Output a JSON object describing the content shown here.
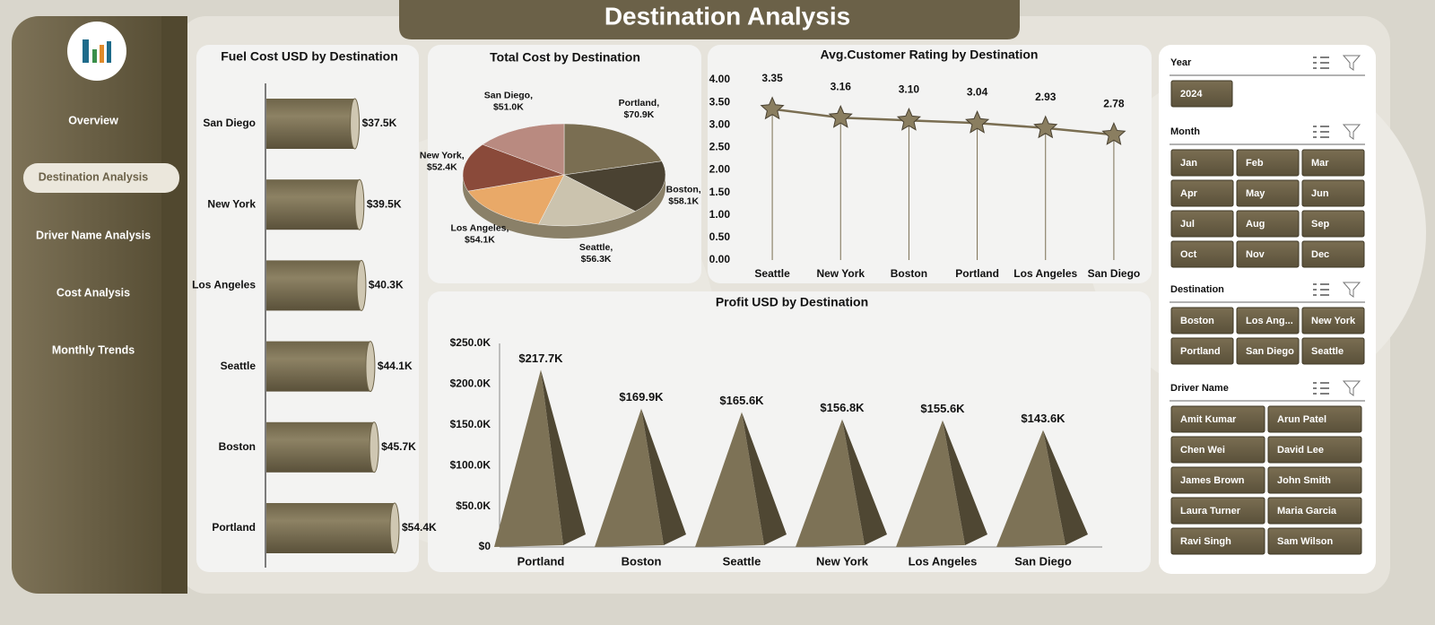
{
  "header": {
    "title": "Destination Analysis"
  },
  "nav": {
    "items": [
      "Overview",
      "Destination Analysis",
      "Driver Name Analysis",
      "Cost Analysis",
      "Monthly Trends"
    ],
    "active": 1
  },
  "chart_data": [
    {
      "type": "hbar",
      "title": "Fuel Cost USD by Destination",
      "color": "#7a6e52",
      "categories": [
        "San Diego",
        "New York",
        "Los Angeles",
        "Seattle",
        "Boston",
        "Portland"
      ],
      "values": [
        37500,
        39500,
        40300,
        44100,
        45700,
        54400
      ],
      "value_labels": [
        "$37.5K",
        "$39.5K",
        "$40.3K",
        "$44.1K",
        "$45.7K",
        "$54.4K"
      ]
    },
    {
      "type": "pie",
      "title": "Total Cost by Destination",
      "categories": [
        "Portland,",
        "Boston,",
        "Seattle,",
        "Los Angeles,",
        "New York,",
        "San Diego,"
      ],
      "values": [
        70900,
        58100,
        56300,
        54100,
        52400,
        51000
      ],
      "value_labels": [
        "$70.9K",
        "$58.1K",
        "$56.3K",
        "$54.1K",
        "$52.4K",
        "$51.0K"
      ],
      "colors": [
        "#7a6e52",
        "#4a4232",
        "#cbc3ae",
        "#e9a968",
        "#8a4a3a",
        "#b98a80"
      ]
    },
    {
      "type": "line",
      "title": "Avg.Customer Rating by Destination",
      "color": "#7a6e52",
      "categories": [
        "Seattle",
        "New York",
        "Boston",
        "Portland",
        "Los Angeles",
        "San Diego"
      ],
      "values": [
        3.35,
        3.16,
        3.1,
        3.04,
        2.93,
        2.78
      ],
      "value_labels": [
        "3.35",
        "3.16",
        "3.10",
        "3.04",
        "2.93",
        "2.78"
      ],
      "ylim": [
        0,
        4
      ],
      "yticks": [
        {
          "value": 0,
          "label": "0.00"
        },
        {
          "value": 0.5,
          "label": "0.50"
        },
        {
          "value": 1,
          "label": "1.00"
        },
        {
          "value": 1.5,
          "label": "1.50"
        },
        {
          "value": 2,
          "label": "2.00"
        },
        {
          "value": 2.5,
          "label": "2.50"
        },
        {
          "value": 3,
          "label": "3.00"
        },
        {
          "value": 3.5,
          "label": "3.50"
        },
        {
          "value": 4,
          "label": "4.00"
        }
      ]
    },
    {
      "type": "pyramid",
      "title": "Profit USD by Destination",
      "color": "#7a6e52",
      "categories": [
        "Portland",
        "Boston",
        "Seattle",
        "New York",
        "Los Angeles",
        "San Diego"
      ],
      "values": [
        217700,
        169900,
        165600,
        156800,
        155600,
        143600
      ],
      "value_labels": [
        "$217.7K",
        "$169.9K",
        "$165.6K",
        "$156.8K",
        "$155.6K",
        "$143.6K"
      ],
      "ylim": [
        0,
        250000
      ],
      "yticks": [
        {
          "value": 0,
          "label": "$0"
        },
        {
          "value": 50000,
          "label": "$50.0K"
        },
        {
          "value": 100000,
          "label": "$100.0K"
        },
        {
          "value": 150000,
          "label": "$150.0K"
        },
        {
          "value": 200000,
          "label": "$200.0K"
        },
        {
          "value": 250000,
          "label": "$250.0K"
        }
      ]
    }
  ],
  "slicers": [
    {
      "title": "Year",
      "items": [
        "2024"
      ]
    },
    {
      "title": "Month",
      "items": [
        "Jan",
        "Feb",
        "Mar",
        "Apr",
        "May",
        "Jun",
        "Jul",
        "Aug",
        "Sep",
        "Oct",
        "Nov",
        "Dec"
      ]
    },
    {
      "title": "Destination",
      "items": [
        "Boston",
        "Los Ang...",
        "New York",
        "Portland",
        "San Diego",
        "Seattle"
      ]
    },
    {
      "title": "Driver Name",
      "items": [
        "Amit Kumar",
        "Arun Patel",
        "Chen Wei",
        "David Lee",
        "James Brown",
        "John Smith",
        "Laura Turner",
        "Maria Garcia",
        "Ravi Singh",
        "Sam Wilson"
      ]
    }
  ]
}
